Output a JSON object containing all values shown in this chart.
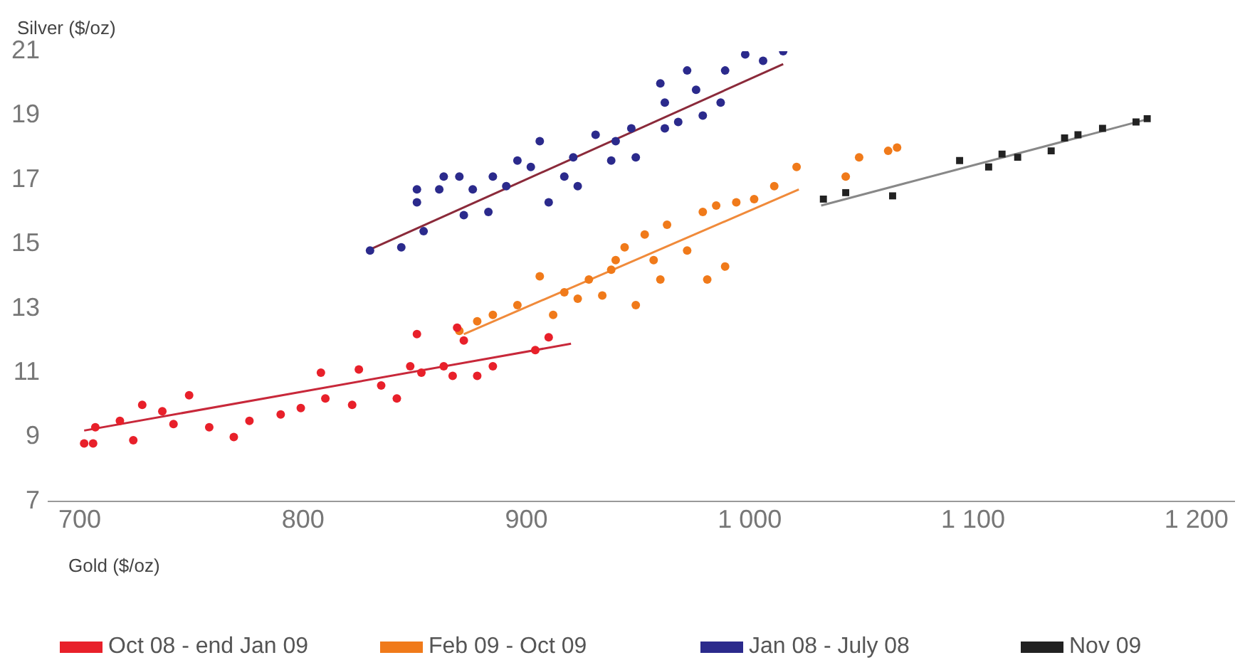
{
  "chart_data": {
    "type": "scatter",
    "xlabel": "Gold ($/oz)",
    "ylabel": "Silver ($/oz)",
    "xlim": [
      686,
      1217
    ],
    "ylim": [
      7,
      21
    ],
    "xticks": [
      700,
      800,
      900,
      {
        "value": 1000,
        "label": "1 000"
      },
      {
        "value": 1100,
        "label": "1 100"
      },
      {
        "value": 1200,
        "label": "1 200"
      }
    ],
    "yticks": [
      7,
      9,
      11,
      13,
      15,
      17,
      19,
      21
    ],
    "grid": false,
    "legend": "bottom",
    "marker": "circle",
    "series": [
      {
        "name": "Oct 08 - end Jan 09",
        "color": "#e8202a",
        "x": [
          706,
          707,
          718,
          724,
          728,
          737,
          749,
          742,
          758,
          769,
          776,
          790,
          799,
          810,
          822,
          825,
          835,
          842,
          848,
          851,
          867,
          869,
          863,
          872,
          885,
          904,
          910,
          878,
          702,
          808,
          853
        ],
        "values": [
          8.8,
          9.3,
          9.5,
          8.9,
          10.0,
          9.8,
          10.3,
          9.4,
          9.3,
          9.0,
          9.5,
          9.7,
          9.9,
          10.2,
          10.0,
          11.1,
          10.6,
          10.2,
          11.2,
          12.2,
          10.9,
          12.4,
          11.2,
          12.0,
          11.2,
          11.7,
          12.1,
          10.9,
          8.8,
          11.0,
          11.0
        ]
      },
      {
        "name": "Feb 09 - Oct 09",
        "color": "#f07a1a",
        "x": [
          906,
          917,
          928,
          938,
          944,
          953,
          963,
          972,
          979,
          985,
          994,
          1002,
          1011,
          1021,
          989,
          981,
          960,
          896,
          885,
          878,
          870,
          923,
          934,
          949,
          1049,
          1062,
          1043,
          1066,
          940,
          957,
          912
        ],
        "values": [
          14.0,
          13.5,
          13.9,
          14.2,
          14.9,
          15.3,
          15.6,
          14.8,
          16.0,
          16.2,
          16.3,
          16.4,
          16.8,
          17.4,
          14.3,
          13.9,
          13.9,
          13.1,
          12.8,
          12.6,
          12.3,
          13.3,
          13.4,
          13.1,
          17.7,
          17.9,
          17.1,
          18.0,
          14.5,
          14.5,
          12.8
        ]
      },
      {
        "name": "Jan 08 - July 08",
        "color": "#2b2a8c",
        "x": [
          830,
          844,
          854,
          851,
          851,
          863,
          861,
          872,
          883,
          876,
          885,
          896,
          891,
          906,
          910,
          917,
          923,
          921,
          931,
          940,
          947,
          938,
          960,
          962,
          972,
          976,
          987,
          989,
          979,
          962,
          968,
          998,
          1015,
          1006,
          949,
          902,
          870
        ],
        "values": [
          14.8,
          14.9,
          15.4,
          16.3,
          16.7,
          17.1,
          16.7,
          15.9,
          16.0,
          16.7,
          17.1,
          17.6,
          16.8,
          18.2,
          16.3,
          17.1,
          16.8,
          17.7,
          18.4,
          18.2,
          18.6,
          17.6,
          20.0,
          19.4,
          20.4,
          19.8,
          19.4,
          20.4,
          19.0,
          18.6,
          18.8,
          20.9,
          21.0,
          20.7,
          17.7,
          17.4,
          17.1
        ]
      },
      {
        "name": "Nov 09",
        "color": "#222222",
        "marker": "square",
        "x": [
          1033,
          1043,
          1064,
          1094,
          1107,
          1113,
          1120,
          1135,
          1141,
          1147,
          1173,
          1178,
          1158
        ],
        "values": [
          16.4,
          16.6,
          16.5,
          17.6,
          17.4,
          17.8,
          17.7,
          17.9,
          18.3,
          18.4,
          18.8,
          18.9,
          18.6
        ]
      },
      {
        "type": "line",
        "color": "#c8283a",
        "marker": "none",
        "x": [
          702,
          920
        ],
        "values": [
          9.2,
          11.9
        ]
      },
      {
        "type": "line",
        "color": "#f08a3a",
        "marker": "none",
        "x": [
          872,
          1022
        ],
        "values": [
          12.2,
          16.7
        ]
      },
      {
        "type": "line",
        "color": "#8b2a3a",
        "marker": "none",
        "x": [
          829,
          1015
        ],
        "values": [
          14.8,
          20.6
        ]
      },
      {
        "type": "line",
        "color": "#888888",
        "marker": "none",
        "x": [
          1032,
          1179
        ],
        "values": [
          16.2,
          18.9
        ]
      }
    ]
  }
}
